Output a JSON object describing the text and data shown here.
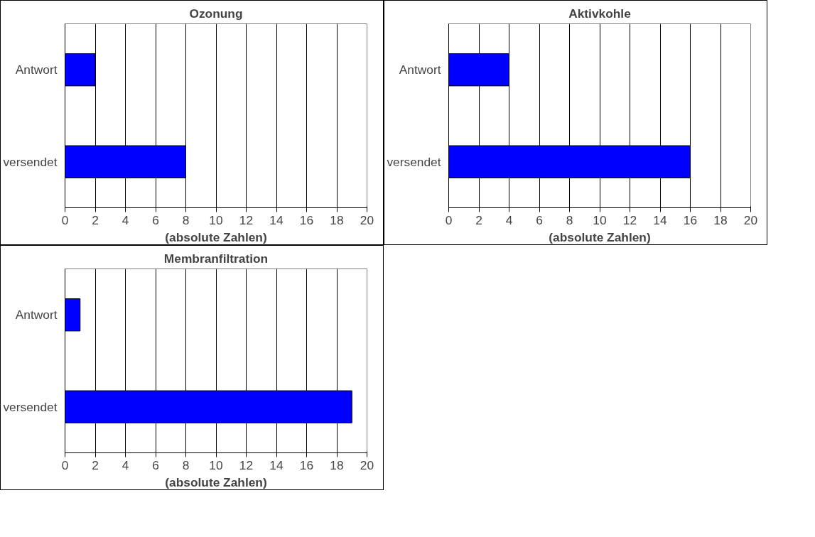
{
  "chart_data": [
    {
      "type": "bar",
      "orientation": "horizontal",
      "title": "Ozonung",
      "xlabel": "(absolute Zahlen)",
      "categories": [
        "Antwort",
        "versendet"
      ],
      "values": [
        2,
        8
      ],
      "color": "#0000ff",
      "xlim": [
        0,
        20
      ],
      "xticks": [
        0,
        2,
        4,
        6,
        8,
        10,
        12,
        14,
        16,
        18,
        20
      ],
      "grid": "x"
    },
    {
      "type": "bar",
      "orientation": "horizontal",
      "title": "Aktivkohle",
      "xlabel": "(absolute Zahlen)",
      "categories": [
        "Antwort",
        "versendet"
      ],
      "values": [
        4,
        16
      ],
      "color": "#0000ff",
      "xlim": [
        0,
        20
      ],
      "xticks": [
        0,
        2,
        4,
        6,
        8,
        10,
        12,
        14,
        16,
        18,
        20
      ],
      "grid": "x"
    },
    {
      "type": "bar",
      "orientation": "horizontal",
      "title": "Membranfiltration",
      "xlabel": "(absolute Zahlen)",
      "categories": [
        "Antwort",
        "versendet"
      ],
      "values": [
        1,
        19
      ],
      "color": "#0000ff",
      "xlim": [
        0,
        20
      ],
      "xticks": [
        0,
        2,
        4,
        6,
        8,
        10,
        12,
        14,
        16,
        18,
        20
      ],
      "grid": "x"
    }
  ]
}
